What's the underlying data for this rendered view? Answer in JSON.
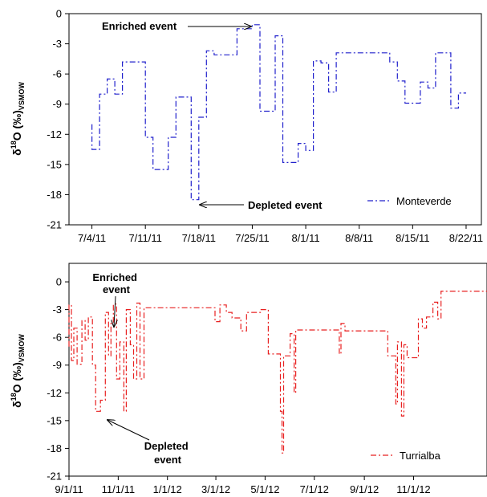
{
  "chart_data": [
    {
      "type": "line",
      "id": "monteverde",
      "ylabel": {
        "delta": "δ",
        "sup": "18",
        "main": "O (‰)",
        "sub": "VSMOW"
      },
      "x_type": "date",
      "xlim": [
        "2011-07-01",
        "2011-08-24"
      ],
      "ylim": [
        -21,
        0
      ],
      "x_ticks": [
        "2011-07-04",
        "2011-07-11",
        "2011-07-18",
        "2011-07-25",
        "2011-08-01",
        "2011-08-08",
        "2011-08-15",
        "2011-08-22"
      ],
      "x_tick_labels": [
        "7/4/11",
        "7/11/11",
        "7/18/11",
        "7/25/11",
        "8/1/11",
        "8/8/11",
        "8/15/11",
        "8/22/11"
      ],
      "y_ticks": [
        0,
        -3,
        -6,
        -9,
        -12,
        -15,
        -18,
        -21
      ],
      "y_tick_labels": [
        "0",
        "-3",
        "-6",
        "-9",
        "-12",
        "-15",
        "-18",
        "-21"
      ],
      "grid": false,
      "legend_position": "bottom-right",
      "series": [
        {
          "name": "Monteverde",
          "color": "#2020cc",
          "dash": "dash-dot",
          "step": true,
          "points": [
            [
              "2011-07-04",
              -11.0
            ],
            [
              "2011-07-04",
              -13.5
            ],
            [
              "2011-07-05",
              -13.5
            ],
            [
              "2011-07-05",
              -8.0
            ],
            [
              "2011-07-06",
              -8.0
            ],
            [
              "2011-07-06",
              -6.5
            ],
            [
              "2011-07-07",
              -6.5
            ],
            [
              "2011-07-07",
              -8.0
            ],
            [
              "2011-07-08",
              -8.0
            ],
            [
              "2011-07-08",
              -4.8
            ],
            [
              "2011-07-11",
              -4.8
            ],
            [
              "2011-07-11",
              -12.3
            ],
            [
              "2011-07-12",
              -12.3
            ],
            [
              "2011-07-12",
              -15.5
            ],
            [
              "2011-07-14",
              -15.5
            ],
            [
              "2011-07-14",
              -12.3
            ],
            [
              "2011-07-15",
              -12.3
            ],
            [
              "2011-07-15",
              -8.3
            ],
            [
              "2011-07-17",
              -8.3
            ],
            [
              "2011-07-17",
              -18.5
            ],
            [
              "2011-07-18",
              -18.5
            ],
            [
              "2011-07-18",
              -10.3
            ],
            [
              "2011-07-19",
              -10.3
            ],
            [
              "2011-07-19",
              -3.7
            ],
            [
              "2011-07-20",
              -3.7
            ],
            [
              "2011-07-20",
              -4.1
            ],
            [
              "2011-07-23",
              -4.1
            ],
            [
              "2011-07-23",
              -1.5
            ],
            [
              "2011-07-25",
              -1.5
            ],
            [
              "2011-07-25",
              -1.1
            ],
            [
              "2011-07-26",
              -1.1
            ],
            [
              "2011-07-26",
              -9.7
            ],
            [
              "2011-07-28",
              -9.7
            ],
            [
              "2011-07-28",
              -2.2
            ],
            [
              "2011-07-29",
              -2.2
            ],
            [
              "2011-07-29",
              -14.8
            ],
            [
              "2011-07-31",
              -14.8
            ],
            [
              "2011-07-31",
              -12.9
            ],
            [
              "2011-08-01",
              -12.9
            ],
            [
              "2011-08-01",
              -13.6
            ],
            [
              "2011-08-02",
              -13.6
            ],
            [
              "2011-08-02",
              -4.7
            ],
            [
              "2011-08-03",
              -4.7
            ],
            [
              "2011-08-03",
              -4.9
            ],
            [
              "2011-08-04",
              -4.9
            ],
            [
              "2011-08-04",
              -7.8
            ],
            [
              "2011-08-05",
              -7.8
            ],
            [
              "2011-08-05",
              -3.9
            ],
            [
              "2011-08-12",
              -3.9
            ],
            [
              "2011-08-12",
              -4.8
            ],
            [
              "2011-08-13",
              -4.8
            ],
            [
              "2011-08-13",
              -6.7
            ],
            [
              "2011-08-14",
              -6.7
            ],
            [
              "2011-08-14",
              -8.9
            ],
            [
              "2011-08-16",
              -8.9
            ],
            [
              "2011-08-16",
              -6.8
            ],
            [
              "2011-08-17",
              -6.8
            ],
            [
              "2011-08-17",
              -7.4
            ],
            [
              "2011-08-18",
              -7.4
            ],
            [
              "2011-08-18",
              -3.9
            ],
            [
              "2011-08-20",
              -3.9
            ],
            [
              "2011-08-20",
              -9.4
            ],
            [
              "2011-08-21",
              -9.4
            ],
            [
              "2011-08-21",
              -7.9
            ],
            [
              "2011-08-22",
              -7.9
            ]
          ]
        }
      ],
      "annotations": [
        {
          "text": "Enriched event",
          "x": "2011-07-25",
          "y": -1.2
        },
        {
          "text": "Depleted event",
          "x": "2011-07-18",
          "y": -18.6
        }
      ]
    },
    {
      "type": "line",
      "id": "turrialba",
      "ylabel": {
        "delta": "δ",
        "sup": "18",
        "main": "O (‰)",
        "sub": "VSMOW"
      },
      "x_type": "date",
      "xlim": [
        "2011-09-01",
        "2013-01-31"
      ],
      "ylim": [
        -21,
        2
      ],
      "x_ticks": [
        "2011-09-01",
        "2011-11-01",
        "2012-01-01",
        "2012-03-01",
        "2012-05-01",
        "2012-07-01",
        "2012-09-01",
        "2012-11-01"
      ],
      "x_tick_labels": [
        "9/1/11",
        "11/1/11",
        "1/1/12",
        "3/1/12",
        "5/1/12",
        "7/1/12",
        "9/1/12",
        "11/1/12"
      ],
      "y_ticks": [
        0,
        -3,
        -6,
        -9,
        -12,
        -15,
        -18,
        -21
      ],
      "y_tick_labels": [
        "0",
        "-3",
        "-6",
        "-9",
        "-12",
        "-15",
        "-18",
        "-21"
      ],
      "grid": false,
      "legend_position": "bottom-right",
      "series": [
        {
          "name": "Turrialba",
          "color": "#e82020",
          "dash": "dash-dot",
          "step": true,
          "points": [
            [
              "2011-09-01",
              -7.0
            ],
            [
              "2011-09-01",
              -2.5
            ],
            [
              "2011-09-04",
              -2.5
            ],
            [
              "2011-09-04",
              -8.5
            ],
            [
              "2011-09-07",
              -8.5
            ],
            [
              "2011-09-07",
              -5.0
            ],
            [
              "2011-09-11",
              -5.0
            ],
            [
              "2011-09-11",
              -8.9
            ],
            [
              "2011-09-17",
              -8.9
            ],
            [
              "2011-09-17",
              -4.2
            ],
            [
              "2011-09-21",
              -4.2
            ],
            [
              "2011-09-21",
              -6.3
            ],
            [
              "2011-09-25",
              -6.3
            ],
            [
              "2011-09-25",
              -3.8
            ],
            [
              "2011-09-30",
              -3.8
            ],
            [
              "2011-09-30",
              -9.0
            ],
            [
              "2011-10-04",
              -9.0
            ],
            [
              "2011-10-04",
              -14.0
            ],
            [
              "2011-10-10",
              -14.0
            ],
            [
              "2011-10-10",
              -12.8
            ],
            [
              "2011-10-16",
              -12.8
            ],
            [
              "2011-10-16",
              -3.3
            ],
            [
              "2011-10-20",
              -3.3
            ],
            [
              "2011-10-20",
              -8.0
            ],
            [
              "2011-10-23",
              -8.0
            ],
            [
              "2011-10-23",
              -4.5
            ],
            [
              "2011-10-26",
              -4.5
            ],
            [
              "2011-10-26",
              -2.4
            ],
            [
              "2011-10-30",
              -2.4
            ],
            [
              "2011-10-30",
              -10.5
            ],
            [
              "2011-11-03",
              -10.5
            ],
            [
              "2011-11-03",
              -6.5
            ],
            [
              "2011-11-08",
              -6.5
            ],
            [
              "2011-11-08",
              -14.0
            ],
            [
              "2011-11-11",
              -14.0
            ],
            [
              "2011-11-11",
              -3.0
            ],
            [
              "2011-11-16",
              -3.0
            ],
            [
              "2011-11-16",
              -6.8
            ],
            [
              "2011-11-20",
              -6.8
            ],
            [
              "2011-11-20",
              -10.5
            ],
            [
              "2011-11-24",
              -10.5
            ],
            [
              "2011-11-24",
              -2.3
            ],
            [
              "2011-11-28",
              -2.3
            ],
            [
              "2011-11-28",
              -10.5
            ],
            [
              "2011-12-03",
              -10.5
            ],
            [
              "2011-12-03",
              -2.8
            ],
            [
              "2012-02-29",
              -2.8
            ],
            [
              "2012-02-29",
              -4.3
            ],
            [
              "2012-03-06",
              -4.3
            ],
            [
              "2012-03-06",
              -2.5
            ],
            [
              "2012-03-14",
              -2.5
            ],
            [
              "2012-03-14",
              -3.3
            ],
            [
              "2012-03-21",
              -3.3
            ],
            [
              "2012-03-21",
              -3.9
            ],
            [
              "2012-04-01",
              -3.9
            ],
            [
              "2012-04-01",
              -5.3
            ],
            [
              "2012-04-08",
              -5.3
            ],
            [
              "2012-04-08",
              -3.3
            ],
            [
              "2012-04-26",
              -3.3
            ],
            [
              "2012-04-26",
              -3.0
            ],
            [
              "2012-05-05",
              -3.0
            ],
            [
              "2012-05-05",
              -7.8
            ],
            [
              "2012-05-20",
              -7.8
            ],
            [
              "2012-05-20",
              -14.0
            ],
            [
              "2012-05-22",
              -14.0
            ],
            [
              "2012-05-22",
              -18.5
            ],
            [
              "2012-05-24",
              -18.5
            ],
            [
              "2012-05-24",
              -8.0
            ],
            [
              "2012-06-01",
              -8.0
            ],
            [
              "2012-06-01",
              -5.6
            ],
            [
              "2012-06-06",
              -5.6
            ],
            [
              "2012-06-06",
              -12.0
            ],
            [
              "2012-06-08",
              -12.0
            ],
            [
              "2012-06-08",
              -5.2
            ],
            [
              "2012-08-01",
              -5.2
            ],
            [
              "2012-08-01",
              -7.8
            ],
            [
              "2012-08-03",
              -7.8
            ],
            [
              "2012-08-03",
              -4.5
            ],
            [
              "2012-08-08",
              -4.5
            ],
            [
              "2012-08-08",
              -5.3
            ],
            [
              "2012-09-30",
              -5.3
            ],
            [
              "2012-09-30",
              -8.0
            ],
            [
              "2012-10-10",
              -8.0
            ],
            [
              "2012-10-10",
              -13.2
            ],
            [
              "2012-10-12",
              -13.2
            ],
            [
              "2012-10-12",
              -6.5
            ],
            [
              "2012-10-17",
              -6.5
            ],
            [
              "2012-10-17",
              -14.5
            ],
            [
              "2012-10-20",
              -14.5
            ],
            [
              "2012-10-20",
              -6.8
            ],
            [
              "2012-10-24",
              -6.8
            ],
            [
              "2012-10-24",
              -8.2
            ],
            [
              "2012-11-07",
              -8.2
            ],
            [
              "2012-11-07",
              -4.0
            ],
            [
              "2012-11-12",
              -4.0
            ],
            [
              "2012-11-12",
              -5.0
            ],
            [
              "2012-11-17",
              -5.0
            ],
            [
              "2012-11-17",
              -3.8
            ],
            [
              "2012-11-25",
              -3.8
            ],
            [
              "2012-11-25",
              -2.2
            ],
            [
              "2012-12-01",
              -2.2
            ],
            [
              "2012-12-01",
              -4.0
            ],
            [
              "2012-12-05",
              -4.0
            ],
            [
              "2012-12-05",
              -1.0
            ],
            [
              "2013-01-31",
              -1.0
            ]
          ]
        }
      ],
      "annotations": [
        {
          "text": "Enriched event",
          "x": "2011-10-26",
          "y": -3.2
        },
        {
          "text": "Depleted event",
          "x": "2011-10-07",
          "y": -14.0
        }
      ]
    }
  ]
}
